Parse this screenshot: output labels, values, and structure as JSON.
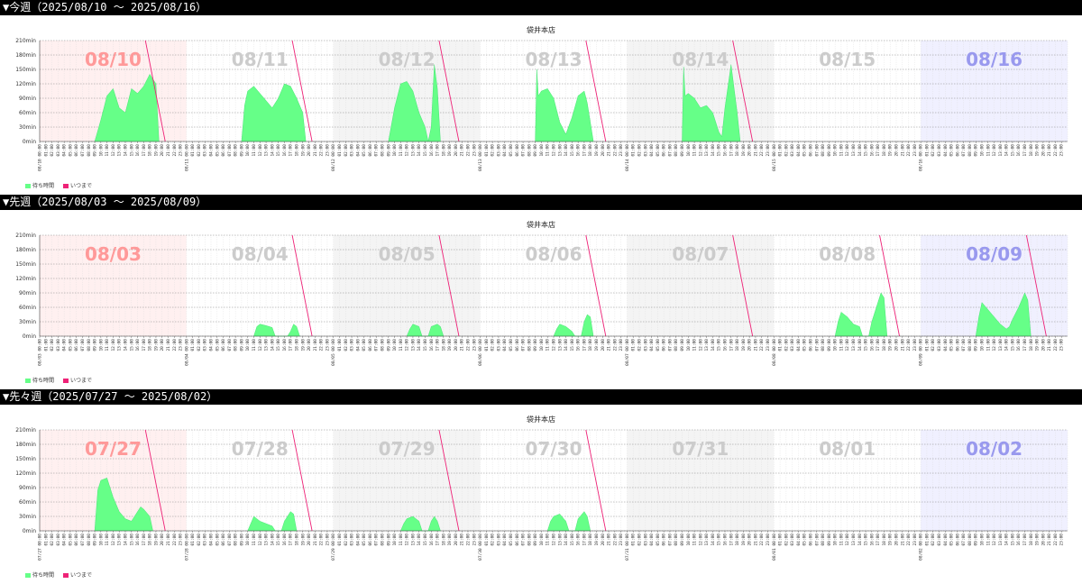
{
  "colors": {
    "wait_fill": "#66ff88",
    "wait_stroke": "#33dd66",
    "until_line": "#ee2277",
    "day_label_weekday": "#cccccc",
    "day_label_sun": "#ff9999",
    "day_label_sat": "#9999ee",
    "bg_sun": "#fff0f0",
    "bg_sat": "#f0f0ff",
    "bg_alt": "#f4f4f4",
    "bg_plain": "#ffffff"
  },
  "weeks": [
    {
      "header": "▼今週（2025/08/10 ～ 2025/08/16）",
      "title": "袋井本店",
      "legend": [
        "待ち時間",
        "いつまで"
      ],
      "chart_data": {
        "type": "area",
        "y_ticks": [
          "0min",
          "30min",
          "60min",
          "90min",
          "120min",
          "150min",
          "180min",
          "210min"
        ],
        "ylim": [
          0,
          210
        ],
        "days": [
          {
            "label": "08/10",
            "date_tick": "08/10",
            "kind": "sun",
            "bg": "sun",
            "has_line": true,
            "x": [
              "09:00",
              "10:00",
              "11:00",
              "12:00",
              "13:00",
              "14:00",
              "15:00",
              "16:00",
              "17:00",
              "18:00",
              "19:00",
              "19:30"
            ],
            "values": [
              0,
              45,
              95,
              110,
              70,
              60,
              110,
              100,
              115,
              140,
              120,
              0
            ]
          },
          {
            "label": "08/11",
            "date_tick": "08/11",
            "kind": "wd",
            "bg": "plain",
            "has_line": true,
            "x": [
              "09:00",
              "09:30",
              "10:00",
              "11:00",
              "12:00",
              "13:00",
              "14:00",
              "15:00",
              "16:00",
              "17:00",
              "18:00",
              "19:00",
              "19:30"
            ],
            "values": [
              0,
              75,
              105,
              115,
              100,
              85,
              70,
              90,
              120,
              115,
              90,
              60,
              0
            ]
          },
          {
            "label": "08/12",
            "date_tick": "08/12",
            "kind": "wd",
            "bg": "alt",
            "has_line": true,
            "x": [
              "09:00",
              "10:00",
              "11:00",
              "12:00",
              "13:00",
              "14:00",
              "15:00",
              "15:30",
              "16:00",
              "16:30",
              "17:00",
              "17:30"
            ],
            "values": [
              0,
              70,
              120,
              125,
              105,
              60,
              30,
              0,
              30,
              160,
              110,
              0
            ]
          },
          {
            "label": "08/13",
            "date_tick": "08/13",
            "kind": "wd",
            "bg": "plain",
            "has_line": true,
            "x": [
              "09:00",
              "09:15",
              "09:30",
              "10:00",
              "11:00",
              "12:00",
              "13:00",
              "14:00",
              "15:00",
              "16:00",
              "17:00",
              "17:30",
              "18:00",
              "18:30"
            ],
            "values": [
              0,
              150,
              95,
              105,
              110,
              90,
              40,
              15,
              50,
              95,
              105,
              80,
              40,
              0
            ]
          },
          {
            "label": "08/14",
            "date_tick": "08/14",
            "kind": "wd",
            "bg": "alt",
            "has_line": true,
            "x": [
              "09:00",
              "09:15",
              "09:30",
              "10:00",
              "11:00",
              "12:00",
              "13:00",
              "14:00",
              "15:00",
              "15:30",
              "16:00",
              "17:00",
              "17:30",
              "18:00",
              "18:30"
            ],
            "values": [
              0,
              155,
              95,
              100,
              90,
              70,
              75,
              60,
              20,
              10,
              70,
              160,
              110,
              60,
              0
            ]
          },
          {
            "label": "08/15",
            "date_tick": "08/15",
            "kind": "wd",
            "bg": "plain",
            "has_line": false,
            "x": [],
            "values": []
          },
          {
            "label": "08/16",
            "date_tick": "08/16",
            "kind": "sat",
            "bg": "sat",
            "has_line": false,
            "x": [],
            "values": []
          }
        ]
      }
    },
    {
      "header": "▼先週（2025/08/03 ～ 2025/08/09）",
      "title": "袋井本店",
      "legend": [
        "待ち時間",
        "いつまで"
      ],
      "chart_data": {
        "type": "area",
        "y_ticks": [
          "0min",
          "30min",
          "60min",
          "90min",
          "120min",
          "150min",
          "180min",
          "210min"
        ],
        "ylim": [
          0,
          210
        ],
        "days": [
          {
            "label": "08/03",
            "date_tick": "08/03",
            "kind": "sun",
            "bg": "sun",
            "has_line": false,
            "x": [],
            "values": []
          },
          {
            "label": "08/04",
            "date_tick": "08/04",
            "kind": "wd",
            "bg": "plain",
            "has_line": true,
            "x": [
              "11:00",
              "11:30",
              "12:00",
              "13:00",
              "14:00",
              "14:30",
              "15:00",
              "16:30",
              "17:00",
              "17:30",
              "18:00",
              "18:30"
            ],
            "values": [
              0,
              20,
              25,
              22,
              18,
              0,
              0,
              0,
              10,
              25,
              20,
              0
            ]
          },
          {
            "label": "08/05",
            "date_tick": "08/05",
            "kind": "wd",
            "bg": "alt",
            "has_line": true,
            "x": [
              "12:00",
              "12:30",
              "13:00",
              "14:00",
              "14:30",
              "15:30",
              "16:00",
              "17:00",
              "17:30",
              "18:00"
            ],
            "values": [
              0,
              15,
              25,
              20,
              0,
              0,
              20,
              25,
              20,
              0
            ]
          },
          {
            "label": "08/06",
            "date_tick": "08/06",
            "kind": "wd",
            "bg": "plain",
            "has_line": true,
            "x": [
              "12:00",
              "12:30",
              "13:00",
              "14:00",
              "15:00",
              "15:30",
              "16:30",
              "17:00",
              "17:30",
              "18:00",
              "18:30"
            ],
            "values": [
              0,
              15,
              25,
              20,
              10,
              0,
              0,
              30,
              45,
              40,
              0
            ]
          },
          {
            "label": "08/07",
            "date_tick": "08/07",
            "kind": "wd",
            "bg": "alt",
            "has_line": true,
            "x": [],
            "values": []
          },
          {
            "label": "08/08",
            "date_tick": "08/08",
            "kind": "wd",
            "bg": "plain",
            "has_line": true,
            "x": [
              "10:00",
              "10:30",
              "11:00",
              "12:00",
              "13:00",
              "14:00",
              "14:30",
              "15:30",
              "16:00",
              "17:00",
              "17:30",
              "18:00",
              "18:30"
            ],
            "values": [
              0,
              30,
              50,
              40,
              25,
              20,
              0,
              0,
              30,
              70,
              90,
              80,
              0
            ]
          },
          {
            "label": "08/09",
            "date_tick": "08/09",
            "kind": "sat",
            "bg": "sat",
            "has_line": true,
            "x": [
              "09:00",
              "09:30",
              "10:00",
              "11:00",
              "12:00",
              "13:00",
              "14:00",
              "14:30",
              "15:00",
              "16:00",
              "17:00",
              "17:30",
              "18:00"
            ],
            "values": [
              0,
              40,
              70,
              55,
              40,
              25,
              15,
              20,
              35,
              60,
              90,
              75,
              0
            ]
          }
        ]
      }
    },
    {
      "header": "▼先々週（2025/07/27 ～ 2025/08/02）",
      "title": "袋井本店",
      "legend": [
        "待ち時間",
        "いつまで"
      ],
      "chart_data": {
        "type": "area",
        "y_ticks": [
          "0min",
          "30min",
          "60min",
          "90min",
          "120min",
          "150min",
          "180min",
          "210min"
        ],
        "ylim": [
          0,
          210
        ],
        "days": [
          {
            "label": "07/27",
            "date_tick": "07/27",
            "kind": "sun",
            "bg": "sun",
            "has_line": true,
            "x": [
              "09:00",
              "09:30",
              "10:00",
              "11:00",
              "12:00",
              "13:00",
              "14:00",
              "15:00",
              "16:00",
              "16:30",
              "17:00",
              "18:00",
              "18:30"
            ],
            "values": [
              0,
              85,
              105,
              110,
              70,
              40,
              25,
              20,
              40,
              50,
              45,
              30,
              0
            ]
          },
          {
            "label": "07/28",
            "date_tick": "07/28",
            "kind": "wd",
            "bg": "plain",
            "has_line": true,
            "x": [
              "10:00",
              "10:30",
              "11:00",
              "12:00",
              "13:00",
              "14:00",
              "14:30",
              "15:30",
              "16:00",
              "17:00",
              "17:30",
              "18:00"
            ],
            "values": [
              0,
              15,
              30,
              20,
              15,
              10,
              0,
              0,
              20,
              40,
              35,
              0
            ]
          },
          {
            "label": "07/29",
            "date_tick": "07/29",
            "kind": "wd",
            "bg": "alt",
            "has_line": true,
            "x": [
              "11:00",
              "11:30",
              "12:00",
              "13:00",
              "14:00",
              "14:30",
              "15:30",
              "16:00",
              "16:30",
              "17:00",
              "17:30"
            ],
            "values": [
              0,
              15,
              25,
              30,
              20,
              0,
              0,
              20,
              30,
              20,
              0
            ]
          },
          {
            "label": "07/30",
            "date_tick": "07/30",
            "kind": "wd",
            "bg": "plain",
            "has_line": true,
            "x": [
              "11:00",
              "11:30",
              "12:00",
              "13:00",
              "14:00",
              "14:30",
              "15:30",
              "16:00",
              "17:00",
              "17:30",
              "18:00"
            ],
            "values": [
              0,
              20,
              30,
              35,
              20,
              0,
              0,
              25,
              40,
              30,
              0
            ]
          },
          {
            "label": "07/31",
            "date_tick": "07/31",
            "kind": "wd",
            "bg": "alt",
            "has_line": false,
            "x": [],
            "values": []
          },
          {
            "label": "08/01",
            "date_tick": "08/01",
            "kind": "wd",
            "bg": "plain",
            "has_line": false,
            "x": [],
            "values": []
          },
          {
            "label": "08/02",
            "date_tick": "08/02",
            "kind": "sat",
            "bg": "sat",
            "has_line": false,
            "x": [],
            "values": []
          }
        ]
      }
    }
  ]
}
